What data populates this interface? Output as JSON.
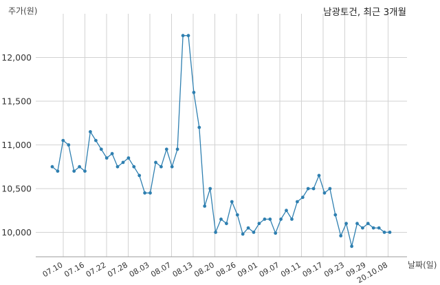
{
  "chart_data": {
    "type": "line",
    "title": "남광토건, 최근 3개월",
    "ylabel": "주가(원)",
    "xlabel": "날짜(일)",
    "ylim": [
      9720,
      12500
    ],
    "yticks": [
      10000,
      10500,
      11000,
      11500,
      12000
    ],
    "ytick_labels": [
      "10,000",
      "10,500",
      "11,000",
      "11,500",
      "12,000"
    ],
    "xticks": [
      "07.10",
      "07.16",
      "07.22",
      "07.28",
      "08.03",
      "08.07",
      "08.13",
      "08.20",
      "08.26",
      "09.01",
      "09.07",
      "09.11",
      "09.17",
      "09.23",
      "09.29",
      "20.10.08"
    ],
    "grid": true,
    "color": "#2e7fb0",
    "values": [
      10750,
      10700,
      11050,
      11000,
      10700,
      10750,
      10700,
      11150,
      11050,
      10950,
      10850,
      10900,
      10750,
      10800,
      10850,
      10750,
      10650,
      10450,
      10450,
      10800,
      10750,
      10950,
      10750,
      10950,
      12250,
      12250,
      11600,
      11200,
      10300,
      10500,
      10000,
      10150,
      10100,
      10350,
      10200,
      9980,
      10050,
      10000,
      10100,
      10150,
      10150,
      9990,
      10150,
      10250,
      10150,
      10350,
      10400,
      10500,
      10500,
      10650,
      10450,
      10500,
      10200,
      9960,
      10100,
      9840,
      10100,
      10050,
      10100,
      10050,
      10050,
      10000,
      10000
    ]
  }
}
